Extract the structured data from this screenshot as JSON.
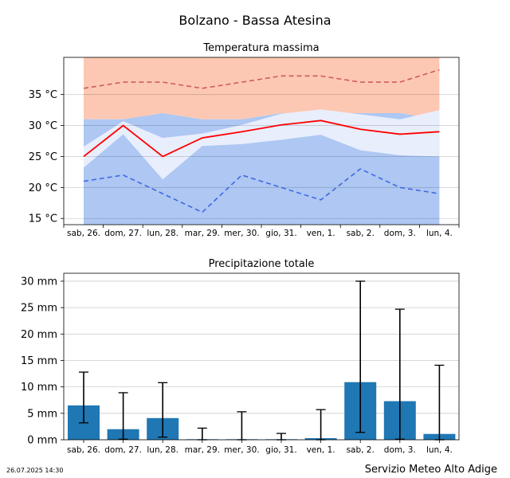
{
  "page": {
    "suptitle": "Bolzano - Bassa Atesina",
    "footer_left": "26.07.2025 14:30",
    "footer_right": "Servizio Meteo Alto Adige"
  },
  "chart_data": [
    {
      "type": "line",
      "title": "Temperatura massima",
      "categories": [
        "sab, 26.",
        "dom, 27.",
        "lun, 28.",
        "mar, 29.",
        "mer, 30.",
        "gio, 31.",
        "ven, 1.",
        "sab, 2.",
        "dom, 3.",
        "lun, 4."
      ],
      "ylim": [
        14,
        41
      ],
      "yticks": [
        15,
        20,
        25,
        30,
        35
      ],
      "yunit": "°C",
      "grid": true,
      "bands": [
        {
          "name": "warm",
          "color": "#fdc8b3",
          "low": [
            31,
            31,
            32,
            31,
            31,
            32,
            32,
            32,
            32,
            31
          ],
          "high": [
            41,
            41,
            41,
            41,
            41,
            41,
            41,
            41,
            41,
            41
          ]
        },
        {
          "name": "normal",
          "color": "#aec7f3",
          "low": [
            14,
            14,
            14,
            14,
            14,
            14,
            14,
            14,
            14,
            14
          ],
          "high": [
            31,
            31,
            32,
            31,
            31,
            32,
            32,
            32,
            32,
            31
          ]
        },
        {
          "name": "spread",
          "color": "#e8eefc",
          "low": [
            23.2,
            28.6,
            21.3,
            26.7,
            27,
            27.7,
            28.5,
            26,
            25.2,
            25
          ],
          "high": [
            26.6,
            30.7,
            28,
            28.7,
            30.1,
            31.9,
            32.6,
            31.8,
            31,
            32.5
          ]
        }
      ],
      "series": [
        {
          "name": "max",
          "color": "#cd5c5c",
          "style": "dashed",
          "values": [
            36,
            37,
            37,
            36,
            37,
            38,
            38,
            37,
            37,
            39
          ]
        },
        {
          "name": "median",
          "color": "#ff0000",
          "style": "solid",
          "values": [
            25,
            30,
            25,
            28,
            29,
            30.1,
            30.8,
            29.4,
            28.6,
            29
          ]
        },
        {
          "name": "min",
          "color": "#4169e1",
          "style": "dashed",
          "values": [
            21,
            22,
            19,
            16,
            22,
            20,
            18,
            23,
            20,
            19
          ]
        }
      ]
    },
    {
      "type": "bar",
      "title": "Precipitazione totale",
      "categories": [
        "sab, 26.",
        "dom, 27.",
        "lun, 28.",
        "mar, 29.",
        "mer, 30.",
        "gio, 31.",
        "ven, 1.",
        "sab, 2.",
        "dom, 3.",
        "lun, 4."
      ],
      "values": [
        6.5,
        2,
        4.1,
        0.1,
        0.1,
        0.1,
        0.3,
        10.9,
        7.3,
        1.1
      ],
      "err_low": [
        3.2,
        0.1,
        0.5,
        0,
        0,
        0,
        0,
        1.4,
        0.1,
        0
      ],
      "err_high": [
        12.8,
        8.9,
        10.8,
        2.2,
        5.3,
        1.2,
        5.7,
        30,
        24.7,
        14.1
      ],
      "ylim": [
        0,
        31.5
      ],
      "yticks": [
        0,
        5,
        10,
        15,
        20,
        25,
        30
      ],
      "yunit": "mm",
      "color": "#1f77b4",
      "grid": true
    }
  ]
}
